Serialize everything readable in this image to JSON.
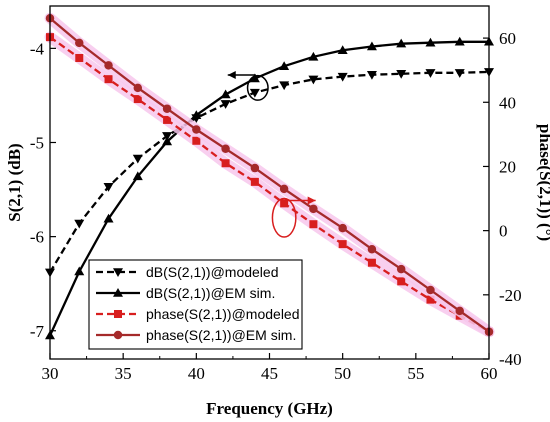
{
  "chart_data": {
    "type": "line",
    "xlabel": "Frequency (GHz)",
    "ylabel_left": "S(2,1) (dB)",
    "ylabel_right": "phase(S(2,1)) (°)",
    "xlim": [
      30,
      60
    ],
    "ylim_left": [
      -7.3,
      -3.55
    ],
    "ylim_right": [
      -40,
      70
    ],
    "x_ticks": [
      30,
      35,
      40,
      45,
      50,
      55,
      60
    ],
    "y_left_ticks": [
      -7,
      -6,
      -5,
      -4
    ],
    "y_right_ticks": [
      -40,
      -20,
      0,
      20,
      40,
      60
    ],
    "grid": false,
    "legend_position": "bottom-left",
    "series": [
      {
        "name": "dB(S(2,1))@modeled",
        "axis": "left",
        "color": "#000000",
        "line": "dashed",
        "marker": "triangle-down",
        "x": [
          30,
          32,
          34,
          36,
          38,
          40,
          42,
          44,
          46,
          48,
          50,
          52,
          54,
          56,
          58,
          60
        ],
        "y": [
          -6.38,
          -5.86,
          -5.47,
          -5.17,
          -4.93,
          -4.74,
          -4.59,
          -4.47,
          -4.39,
          -4.33,
          -4.3,
          -4.28,
          -4.27,
          -4.26,
          -4.26,
          -4.25
        ]
      },
      {
        "name": "dB(S(2,1))@EM sim.",
        "axis": "left",
        "color": "#000000",
        "line": "solid",
        "marker": "triangle-up",
        "x": [
          30,
          32,
          34,
          36,
          38,
          40,
          42,
          44,
          46,
          48,
          50,
          52,
          54,
          56,
          58,
          60
        ],
        "y": [
          -7.05,
          -6.37,
          -5.81,
          -5.36,
          -4.99,
          -4.71,
          -4.49,
          -4.32,
          -4.19,
          -4.09,
          -4.02,
          -3.98,
          -3.95,
          -3.94,
          -3.93,
          -3.93
        ]
      },
      {
        "name": "phase(S(2,1))@modeled",
        "axis": "right",
        "color": "#d81e1e",
        "line": "dashed",
        "marker": "square",
        "x": [
          30,
          32,
          34,
          36,
          38,
          40,
          42,
          44,
          46,
          48,
          50,
          52,
          54,
          56,
          58,
          60
        ],
        "y": [
          60.3,
          53.8,
          47.2,
          41.0,
          34.5,
          28.0,
          21.0,
          15.2,
          8.5,
          2.0,
          -4.2,
          -10.0,
          -15.8,
          -21.5,
          -26.5,
          -31.5
        ]
      },
      {
        "name": "phase(S(2,1))@EM sim.",
        "axis": "right",
        "color": "#a52a2a",
        "line": "solid",
        "marker": "circle",
        "x": [
          30,
          32,
          34,
          36,
          38,
          40,
          42,
          44,
          46,
          48,
          50,
          52,
          54,
          56,
          58,
          60
        ],
        "y": [
          66.2,
          58.5,
          51.5,
          44.5,
          38.0,
          31.5,
          25.5,
          19.5,
          13.0,
          6.8,
          0.8,
          -5.8,
          -12.0,
          -18.5,
          -25.0,
          -31.5
        ]
      }
    ],
    "annotations": [
      {
        "type": "ellipse",
        "axis": "left",
        "cx": 44.2,
        "cy": -4.42,
        "rx_data": 0.7,
        "ry_data": 0.13,
        "arrow": "left",
        "color": "#000000"
      },
      {
        "type": "ellipse",
        "axis": "right",
        "cx": 46.0,
        "cy": 4.0,
        "rx_data": 0.8,
        "ry_data": 6.0,
        "arrow": "right",
        "color": "#d81e1e"
      }
    ]
  }
}
